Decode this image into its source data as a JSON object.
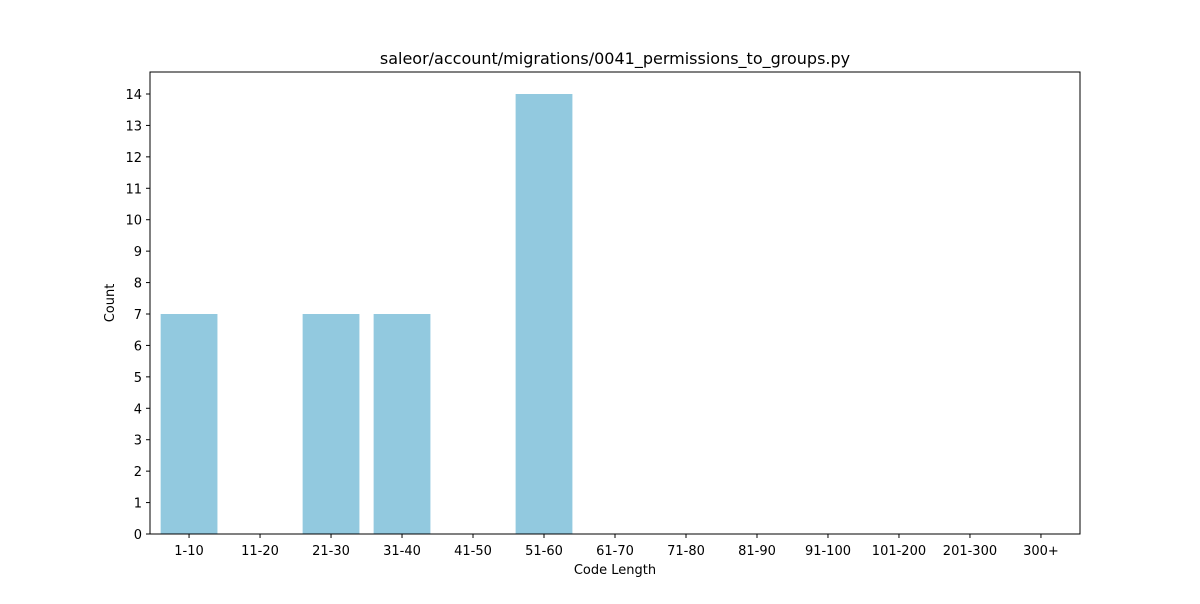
{
  "chart_data": {
    "type": "bar",
    "title": "saleor/account/migrations/0041_permissions_to_groups.py",
    "xlabel": "Code Length",
    "ylabel": "Count",
    "categories": [
      "1-10",
      "11-20",
      "21-30",
      "31-40",
      "41-50",
      "51-60",
      "61-70",
      "71-80",
      "81-90",
      "91-100",
      "101-200",
      "201-300",
      "300+"
    ],
    "values": [
      7,
      0,
      7,
      7,
      0,
      14,
      0,
      0,
      0,
      0,
      0,
      0,
      0
    ],
    "ylim": [
      0,
      14.7
    ],
    "yticks": [
      0,
      1,
      2,
      3,
      4,
      5,
      6,
      7,
      8,
      9,
      10,
      11,
      12,
      13,
      14
    ],
    "bar_color": "#92c9df",
    "grid": false,
    "legend": "none"
  }
}
